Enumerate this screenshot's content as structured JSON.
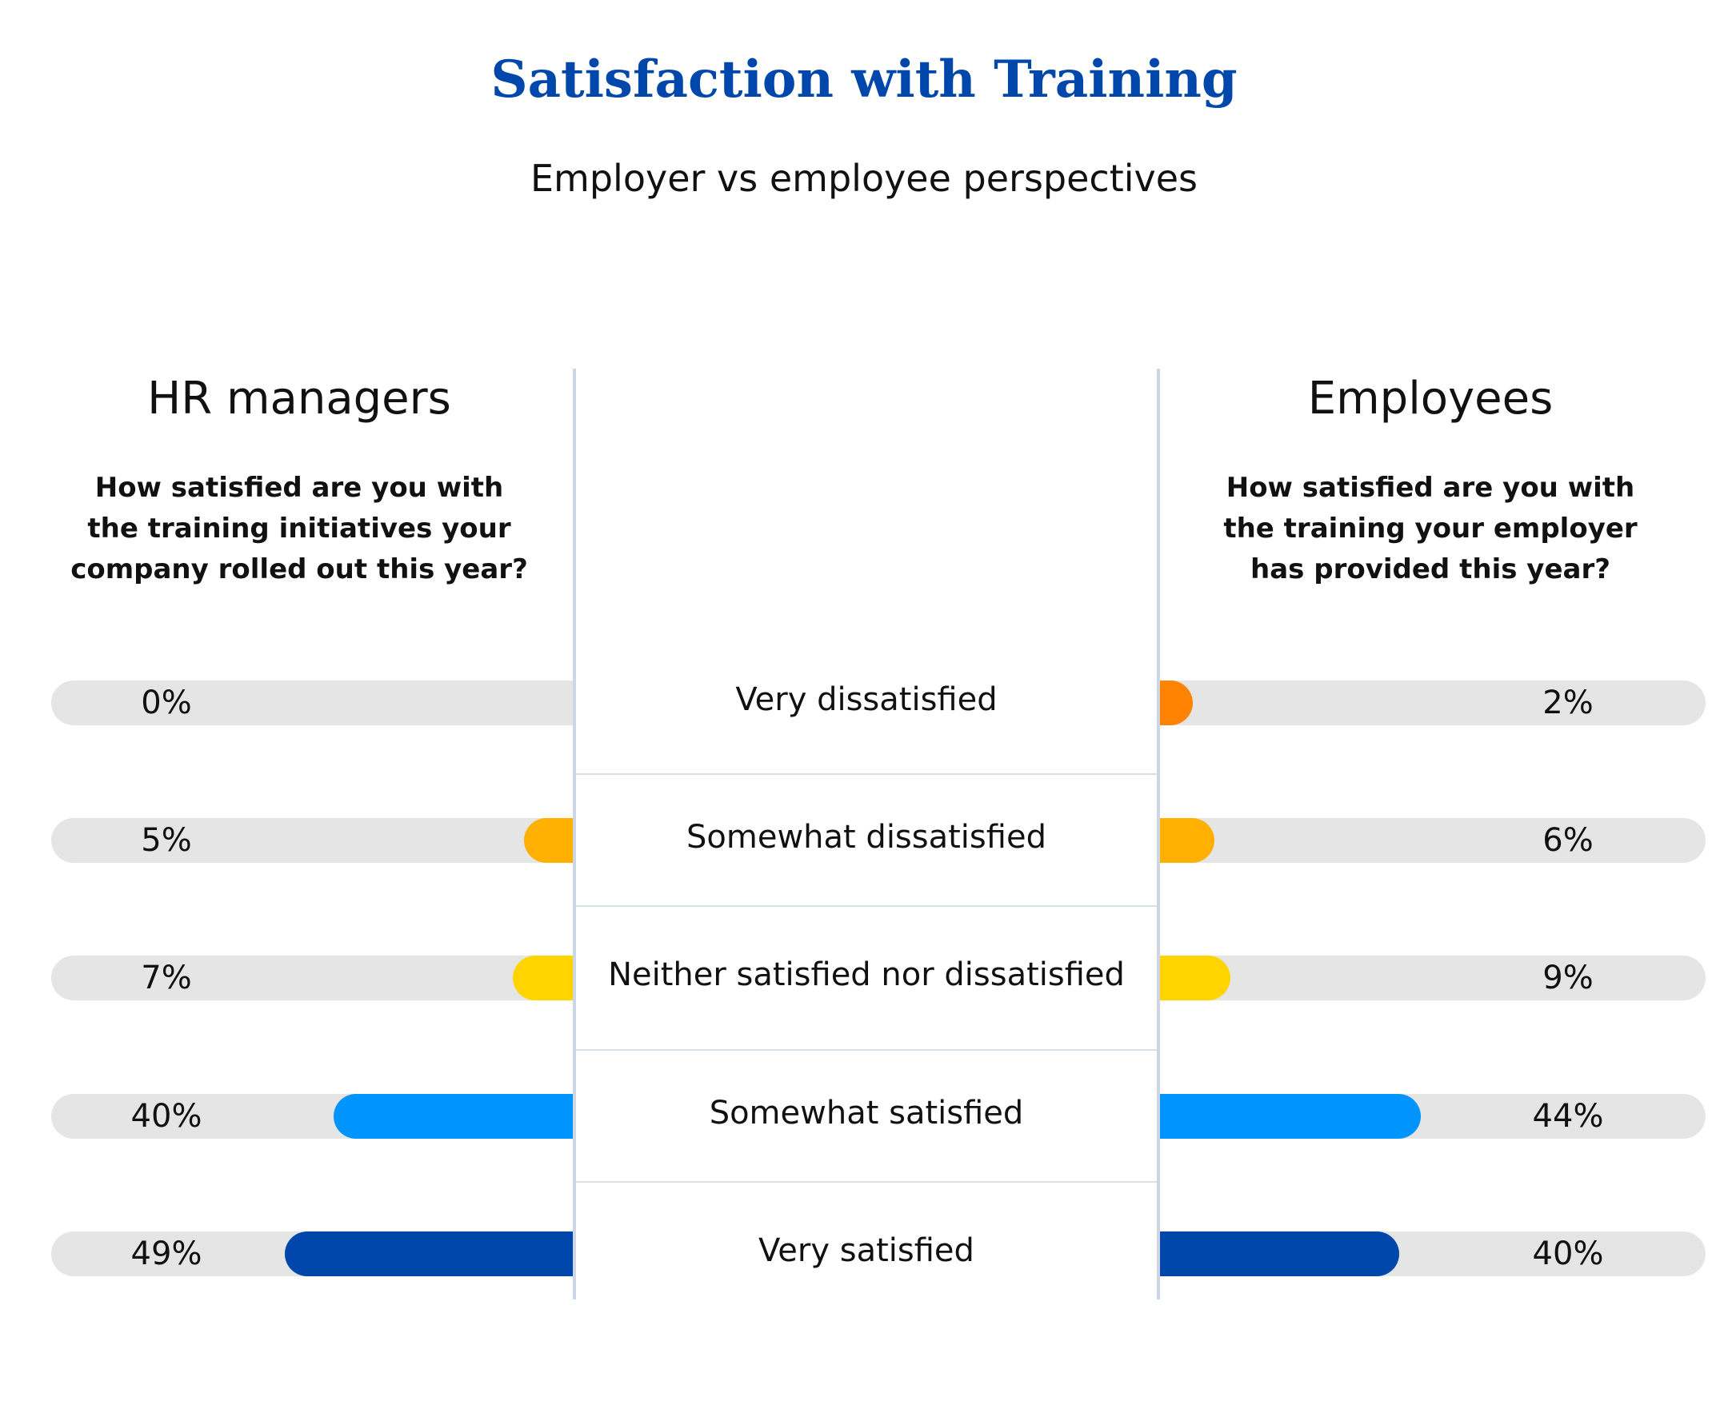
{
  "chart_data": {
    "type": "bar",
    "title": "Satisfaction with Training",
    "subtitle": "Employer vs employee perspectives",
    "categories": [
      "Very dissatisfied",
      "Somewhat dissatisfied",
      "Neither satisfied nor dissatisfied",
      "Somewhat satisfied",
      "Very satisfied"
    ],
    "colors": [
      "#ff8200",
      "#ffb000",
      "#ffd400",
      "#0094ff",
      "#0047ab"
    ],
    "track_color": "#e5e5e5",
    "series": [
      {
        "name": "HR managers",
        "question": [
          "How satisfied are you with",
          "the training initiatives your",
          "company rolled out this year?"
        ],
        "values": [
          0,
          5,
          7,
          40,
          49
        ],
        "labels": [
          "0%",
          "5%",
          "7%",
          "40%",
          "49%"
        ]
      },
      {
        "name": "Employees",
        "question": [
          "How satisfied are you with",
          "the training your employer",
          "has provided this year?"
        ],
        "values": [
          2,
          6,
          9,
          44,
          40
        ],
        "labels": [
          "2%",
          "6%",
          "9%",
          "44%",
          "40%"
        ]
      }
    ],
    "unit": "%"
  }
}
